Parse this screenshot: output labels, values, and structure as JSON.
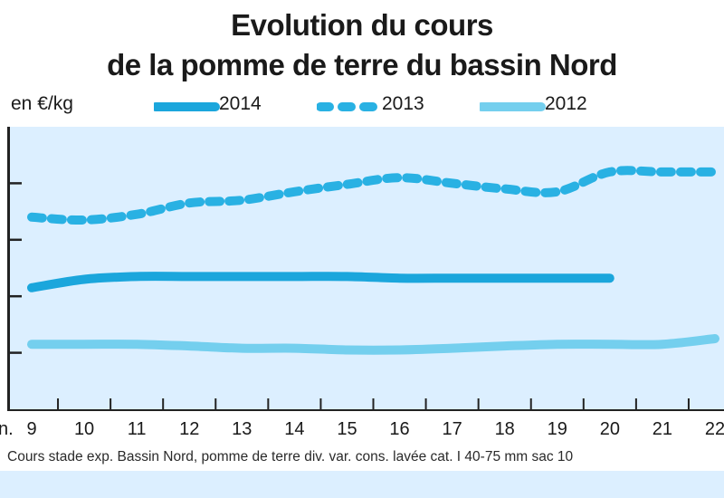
{
  "chart_data": {
    "type": "line",
    "title_line1": "Evolution du cours",
    "title_line2": "de la pomme de terre du bassin Nord",
    "ylabel": "en €/kg",
    "x_first_label_fragment": "n.",
    "x": [
      9,
      10,
      11,
      12,
      13,
      14,
      15,
      16,
      17,
      18,
      19,
      20,
      21,
      22
    ],
    "ylim": [
      0,
      5
    ],
    "series": [
      {
        "name": "2014",
        "style": "solid-thick",
        "color": "#1ba6dc",
        "points": [
          [
            9,
            2.15
          ],
          [
            10,
            2.3
          ],
          [
            11,
            2.35
          ],
          [
            12,
            2.35
          ],
          [
            13,
            2.35
          ],
          [
            14,
            2.35
          ],
          [
            15,
            2.35
          ],
          [
            16,
            2.32
          ],
          [
            17,
            2.32
          ],
          [
            18,
            2.32
          ],
          [
            19,
            2.32
          ],
          [
            20,
            2.32
          ]
        ]
      },
      {
        "name": "2013",
        "style": "dashed-thick",
        "color": "#29b1e3",
        "points": [
          [
            9,
            3.4
          ],
          [
            10,
            3.35
          ],
          [
            11,
            3.45
          ],
          [
            12,
            3.65
          ],
          [
            13,
            3.7
          ],
          [
            14,
            3.85
          ],
          [
            15,
            3.98
          ],
          [
            16,
            4.1
          ],
          [
            17,
            4.0
          ],
          [
            18,
            3.9
          ],
          [
            19,
            3.85
          ],
          [
            20,
            4.2
          ],
          [
            21,
            4.2
          ],
          [
            22,
            4.2
          ]
        ]
      },
      {
        "name": "2012",
        "style": "solid-light",
        "color": "#74cfee",
        "points": [
          [
            9,
            1.15
          ],
          [
            10,
            1.15
          ],
          [
            11,
            1.15
          ],
          [
            12,
            1.12
          ],
          [
            13,
            1.08
          ],
          [
            14,
            1.08
          ],
          [
            15,
            1.05
          ],
          [
            16,
            1.05
          ],
          [
            17,
            1.08
          ],
          [
            18,
            1.12
          ],
          [
            19,
            1.15
          ],
          [
            20,
            1.15
          ],
          [
            21,
            1.15
          ],
          [
            22,
            1.25
          ]
        ]
      }
    ],
    "grid": false,
    "legend": "top",
    "footnote": "Cours stade exp. Bassin Nord, pomme de terre div. var. cons. lavée cat. I 40-75 mm sac 10"
  }
}
